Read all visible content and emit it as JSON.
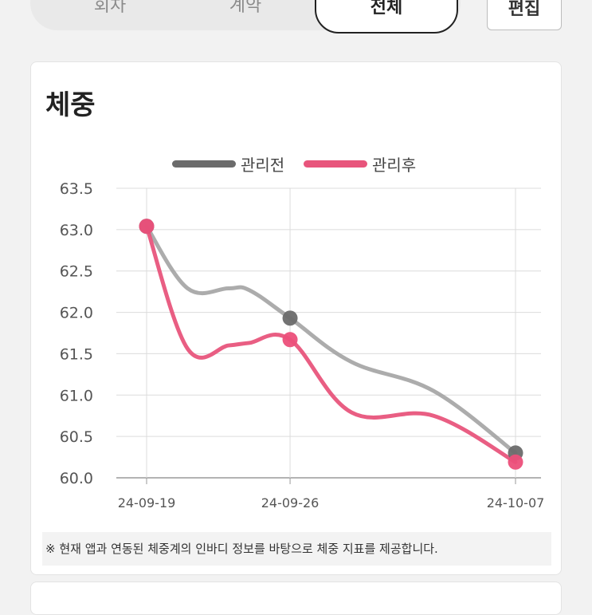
{
  "tabs": [
    {
      "label": "회차"
    },
    {
      "label": "계약"
    },
    {
      "label": "전체"
    }
  ],
  "edit_label": "편집",
  "card": {
    "title": "체중",
    "note": "※ 현재 앱과 연동된 체중계의 인바디 정보를 바탕으로 체중 지표를 제공합니다."
  },
  "chart_data": {
    "type": "line",
    "title": "체중",
    "xlabel": "",
    "ylabel": "",
    "ylim": [
      60.0,
      63.5
    ],
    "yticks": [
      "63.5",
      "63.0",
      "62.5",
      "62.0",
      "61.5",
      "61.0",
      "60.5",
      "60.0"
    ],
    "xtick_labels": [
      "24-09-19",
      "24-09-26",
      "24-10-07"
    ],
    "legend_position": "top",
    "grid": true,
    "series": [
      {
        "name": "관리전",
        "color": "#9e9e9e",
        "marker_color": "#6b6b6b",
        "points": [
          {
            "x": "24-09-19",
            "y": 63.04,
            "marker": true
          },
          {
            "x": "24-09-21",
            "y": 62.29,
            "marker": false
          },
          {
            "x": "24-09-23",
            "y": 62.29,
            "marker": false
          },
          {
            "x": "24-09-24",
            "y": 62.27,
            "marker": false
          },
          {
            "x": "24-09-26",
            "y": 61.93,
            "marker": true
          },
          {
            "x": "24-09-29",
            "y": 61.4,
            "marker": false
          },
          {
            "x": "24-10-03",
            "y": 61.05,
            "marker": false
          },
          {
            "x": "24-10-07",
            "y": 60.3,
            "marker": true
          }
        ]
      },
      {
        "name": "관리후",
        "color": "#e8557c",
        "marker_color": "#ec4f7a",
        "points": [
          {
            "x": "24-09-19",
            "y": 63.04,
            "marker": true
          },
          {
            "x": "24-09-21",
            "y": 61.56,
            "marker": false
          },
          {
            "x": "24-09-23",
            "y": 61.6,
            "marker": false
          },
          {
            "x": "24-09-24",
            "y": 61.63,
            "marker": false
          },
          {
            "x": "24-09-26",
            "y": 61.67,
            "marker": true
          },
          {
            "x": "24-09-29",
            "y": 60.79,
            "marker": false
          },
          {
            "x": "24-10-03",
            "y": 60.75,
            "marker": false
          },
          {
            "x": "24-10-07",
            "y": 60.19,
            "marker": true
          }
        ]
      }
    ]
  }
}
